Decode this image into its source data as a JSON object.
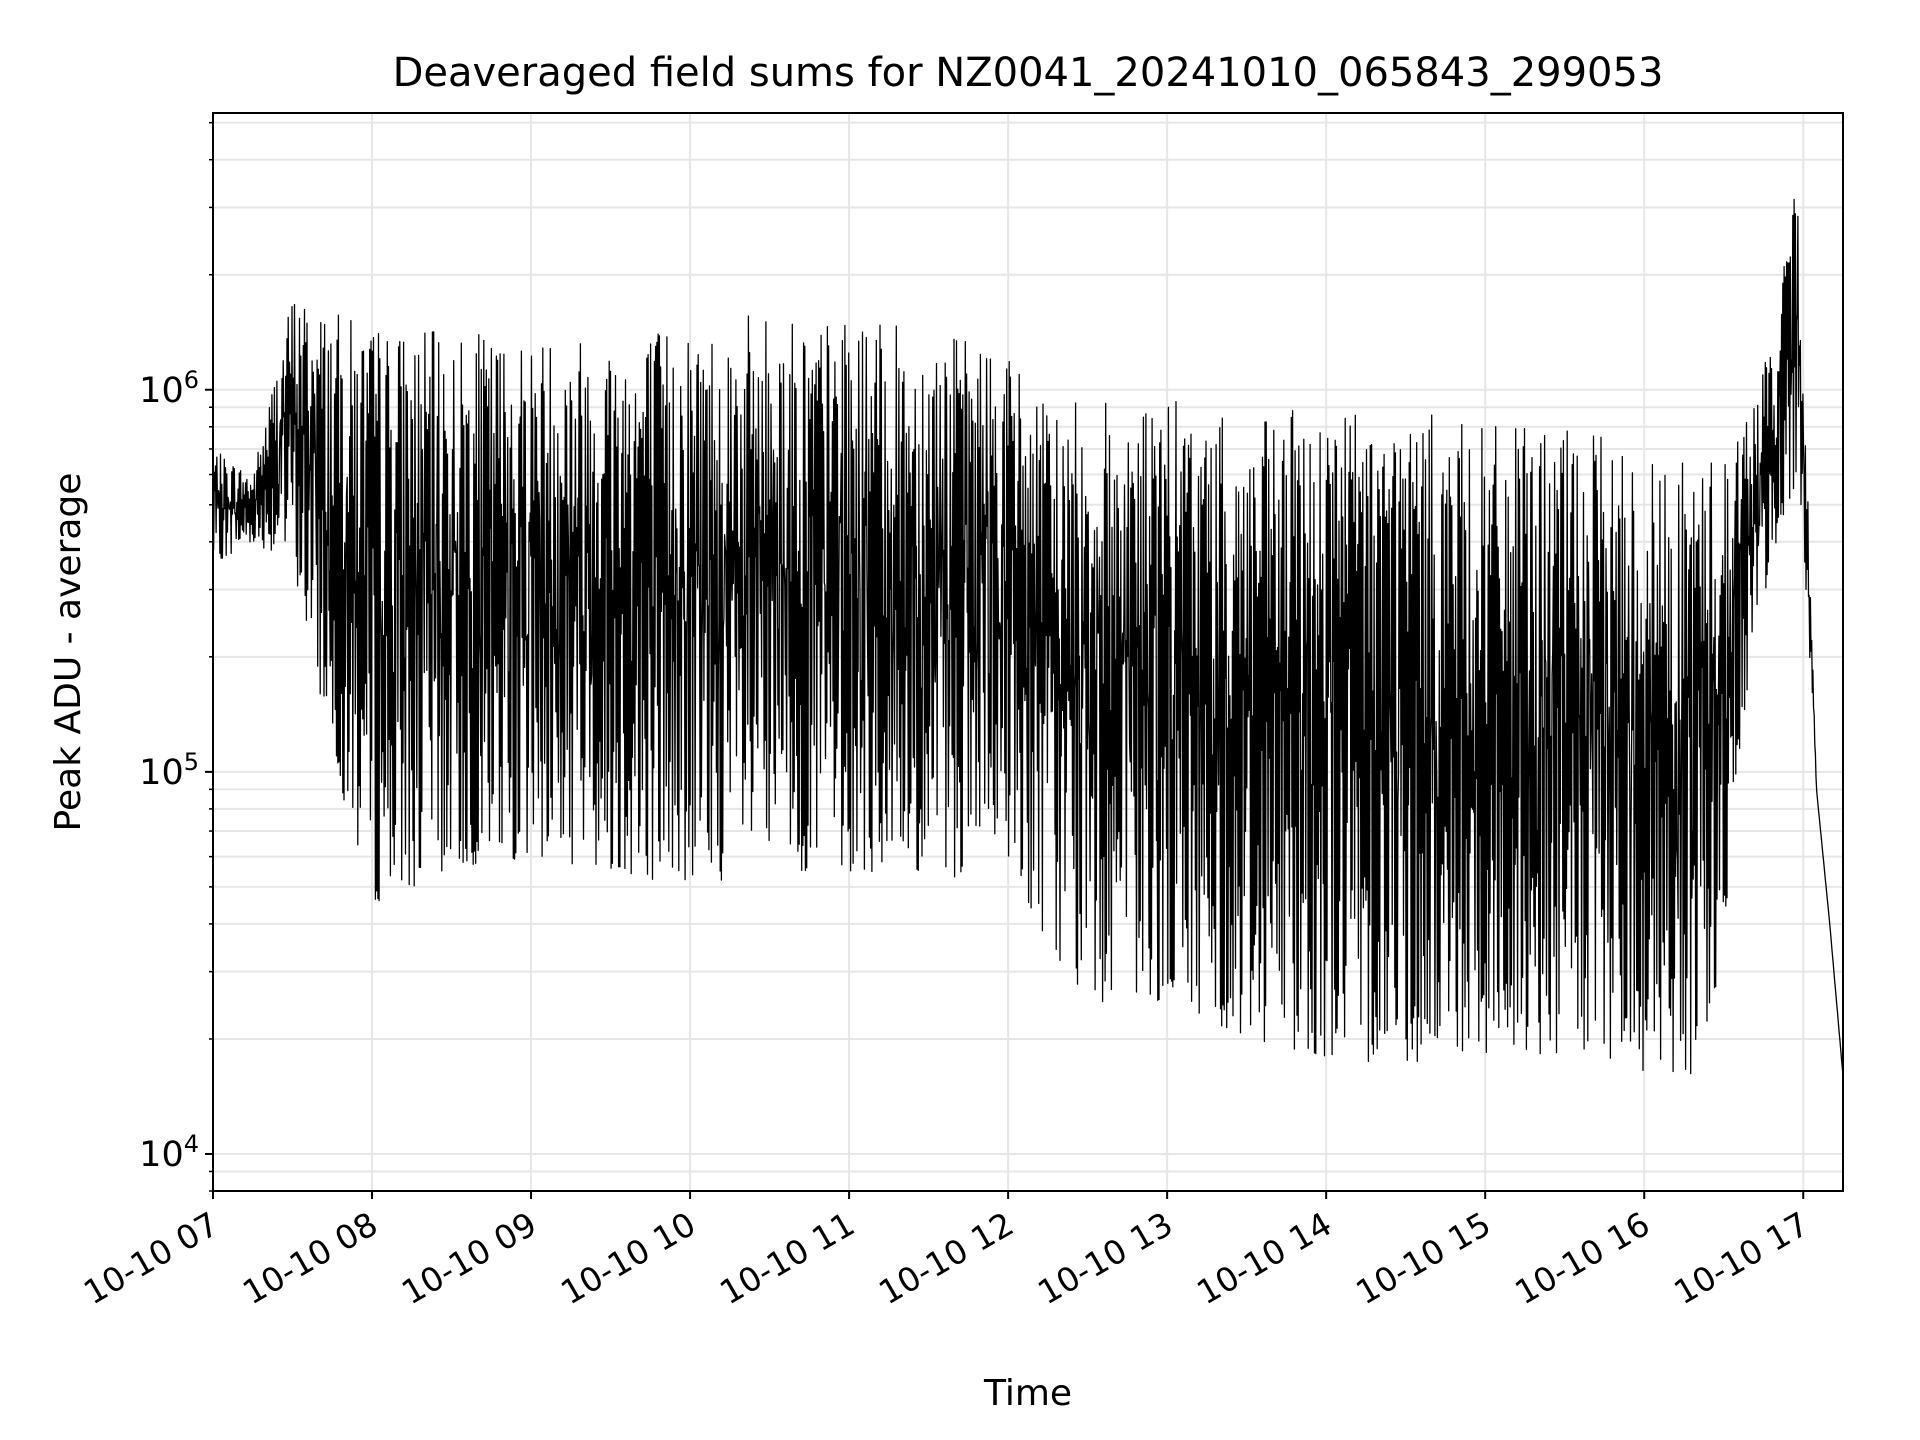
{
  "chart_data": {
    "type": "line",
    "title": "Deaveraged field sums for NZ0041_20241010_065843_299053",
    "xlabel": "Time",
    "ylabel": "Peak ADU - average",
    "y_scale": "log",
    "grid": true,
    "line_color": "#000000",
    "grid_color": "#e6e6e6",
    "x_range": [
      "2024-10-10 07:00",
      "2024-10-10 17:15"
    ],
    "y_range": [
      8000,
      5300000
    ],
    "x_ticks": [
      "10-10 07",
      "10-10 08",
      "10-10 09",
      "10-10 10",
      "10-10 11",
      "10-10 12",
      "10-10 13",
      "10-10 14",
      "10-10 15",
      "10-10 16",
      "10-10 17"
    ],
    "y_ticks": [
      {
        "value": 10000,
        "base": "10",
        "exp": "4"
      },
      {
        "value": 100000,
        "base": "10",
        "exp": "5"
      },
      {
        "value": 1000000,
        "base": "10",
        "exp": "6"
      }
    ],
    "series": [
      {
        "x": [
          "07:00",
          "07:15",
          "07:30",
          "07:45",
          "08:00",
          "08:30",
          "09:00",
          "09:30",
          "10:00",
          "10:30",
          "11:00",
          "11:30",
          "12:00",
          "12:15",
          "12:30",
          "13:00",
          "13:30",
          "14:00",
          "14:30",
          "15:00",
          "15:30",
          "16:00",
          "16:15",
          "16:30",
          "16:40",
          "16:50",
          "16:58",
          "17:05",
          "17:10",
          "17:15"
        ],
        "low": [
          350000,
          400000,
          350000,
          110000,
          45000,
          55000,
          60000,
          55000,
          50000,
          55000,
          55000,
          50000,
          60000,
          35000,
          25000,
          25000,
          20000,
          18000,
          17000,
          18000,
          18000,
          16000,
          14000,
          30000,
          200000,
          400000,
          600000,
          90000,
          40000,
          16000
        ],
        "high": [
          700000,
          600000,
          1800000,
          1600000,
          1500000,
          1400000,
          1400000,
          1450000,
          1500000,
          1600000,
          1500000,
          1450000,
          1300000,
          900000,
          950000,
          950000,
          800000,
          950000,
          900000,
          800000,
          800000,
          700000,
          650000,
          700000,
          900000,
          1500000,
          4000000,
          90000,
          40000,
          16000
        ]
      }
    ]
  }
}
